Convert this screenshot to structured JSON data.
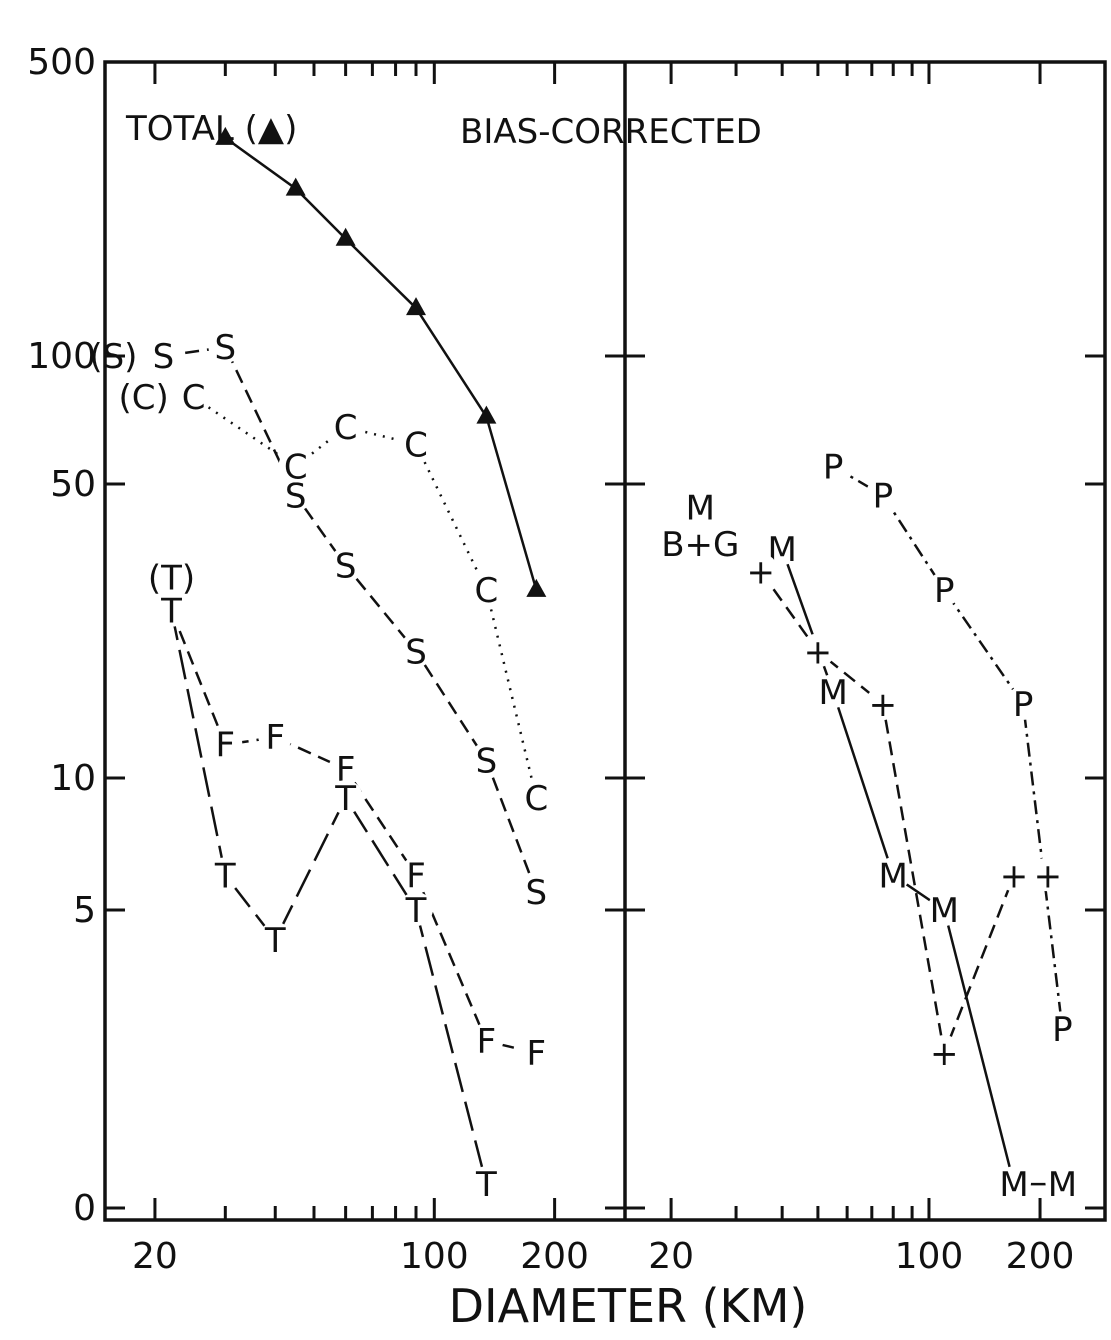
{
  "chart_data": [
    {
      "panel": "left",
      "type": "line",
      "xscale": "log",
      "yscale": "custom",
      "xlim": [
        15,
        300
      ],
      "x_ticks": [
        {
          "v": 20,
          "label": "20"
        },
        {
          "v": 100,
          "label": "100"
        },
        {
          "v": 200,
          "label": "200"
        }
      ],
      "y_ticks": [
        {
          "v": 500,
          "label": "500"
        },
        {
          "v": 100,
          "label": "100"
        },
        {
          "v": 50,
          "label": "50"
        },
        {
          "v": 10,
          "label": "10"
        },
        {
          "v": 5,
          "label": "5"
        },
        {
          "v": 0,
          "label": "0"
        }
      ],
      "annotations": {
        "title": "BIAS-CORRECTED",
        "total_label": "TOTAL (▲)"
      },
      "series": [
        {
          "name": "TOTAL",
          "marker": "▲",
          "style": "solid",
          "x": [
            30,
            45,
            60,
            90,
            135,
            180
          ],
          "y": [
            330,
            250,
            190,
            130,
            72,
            28
          ]
        },
        {
          "name": "S",
          "marker": "S",
          "style": "dashed",
          "x": [
            21,
            30,
            45,
            60,
            90,
            135,
            180
          ],
          "y": [
            100,
            105,
            47,
            32,
            20,
            11,
            5.5
          ],
          "start_label": "(S)"
        },
        {
          "name": "C",
          "marker": "C",
          "style": "dotted",
          "x": [
            25,
            45,
            60,
            90,
            135,
            180
          ],
          "y": [
            80,
            55,
            68,
            62,
            28,
            9
          ],
          "start_label": "(C)"
        },
        {
          "name": "F",
          "marker": "F",
          "style": "dashed",
          "x": [
            22,
            30,
            40,
            60,
            90,
            135,
            180
          ],
          "y": [
            25,
            12,
            12.5,
            10.5,
            6,
            2.8,
            2.6
          ]
        },
        {
          "name": "T",
          "marker": "T",
          "style": "longdash",
          "x": [
            22,
            30,
            40,
            60,
            90,
            135
          ],
          "y": [
            25,
            6,
            4.5,
            9,
            5,
            0.4
          ]
        },
        {
          "name": "(T)",
          "marker": "(T)",
          "style": "none",
          "x": [
            22
          ],
          "y": [
            30
          ]
        }
      ]
    },
    {
      "panel": "right",
      "type": "line",
      "xscale": "log",
      "yscale": "custom",
      "xlim": [
        15,
        300
      ],
      "x_ticks": [
        {
          "v": 20,
          "label": "20"
        },
        {
          "v": 100,
          "label": "100"
        },
        {
          "v": 200,
          "label": "200"
        }
      ],
      "series": [
        {
          "name": "M",
          "marker": "M",
          "style": "solid",
          "x": [
            40,
            55,
            80,
            110,
            170,
            230
          ],
          "y": [
            35,
            16,
            6,
            5,
            0.4,
            0.4
          ]
        },
        {
          "name": "+",
          "marker": "+",
          "style": "dashed",
          "x": [
            35,
            50,
            75,
            110,
            170,
            210
          ],
          "y": [
            31,
            20,
            15,
            2.6,
            6,
            6
          ]
        },
        {
          "name": "P",
          "marker": "P",
          "style": "dashdot",
          "x": [
            55,
            75,
            110,
            180,
            230
          ],
          "y": [
            55,
            47,
            28,
            15,
            3
          ]
        },
        {
          "name": "B+G",
          "marker": "B+G",
          "style": "none",
          "x": [
            24
          ],
          "y": [
            36
          ]
        },
        {
          "name": "M (upper)",
          "marker": "M",
          "style": "none",
          "x": [
            24
          ],
          "y": [
            44
          ]
        }
      ]
    }
  ],
  "xlabel": "DIAMETER (KM)"
}
